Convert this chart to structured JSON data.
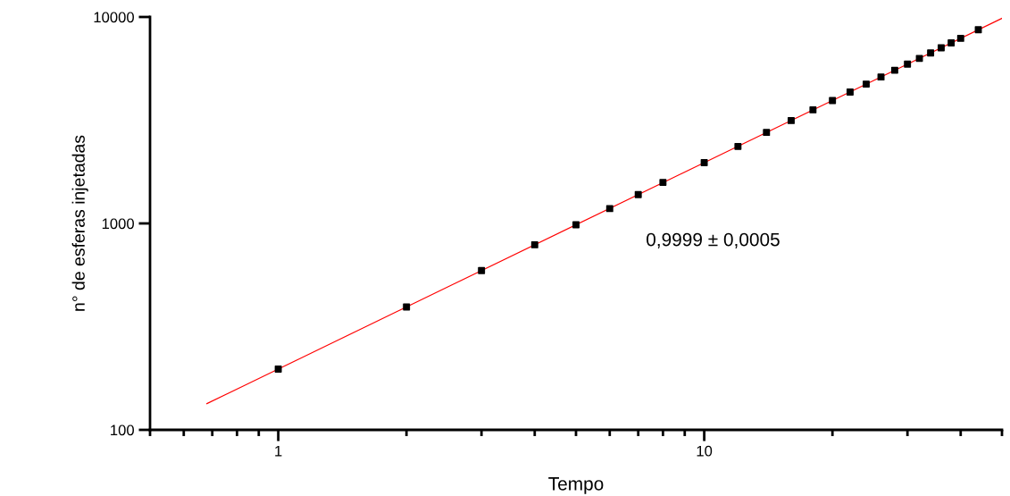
{
  "chart_data": {
    "type": "scatter",
    "xlabel": "Tempo",
    "ylabel": "n° de esferas injetadas",
    "log": "xy",
    "xlim": [
      0.5,
      50
    ],
    "xticks": [
      1,
      10
    ],
    "ylim": [
      100,
      10000
    ],
    "yticks": [
      100,
      1000,
      10000
    ],
    "grid": false,
    "marker": "square",
    "x": [
      1,
      2,
      3,
      4,
      5,
      6,
      7,
      8,
      10,
      12,
      14,
      16,
      18,
      20,
      22,
      24,
      26,
      28,
      30,
      32,
      34,
      36,
      38,
      40,
      44
    ],
    "series": [
      {
        "color": "#000000",
        "values": [
          197,
          394,
          591,
          788,
          985,
          1180,
          1380,
          1580,
          1970,
          2360,
          2760,
          3150,
          3550,
          3940,
          4330,
          4730,
          5120,
          5520,
          5910,
          6300,
          6700,
          7090,
          7490,
          7880,
          8670
        ]
      },
      {
        "type": "line",
        "color": "#ff0000",
        "x": [
          0.68,
          50
        ],
        "values": [
          134,
          9850
        ],
        "marker": "none"
      }
    ],
    "annotations": [
      "0,9999 ± 0,0005"
    ]
  }
}
